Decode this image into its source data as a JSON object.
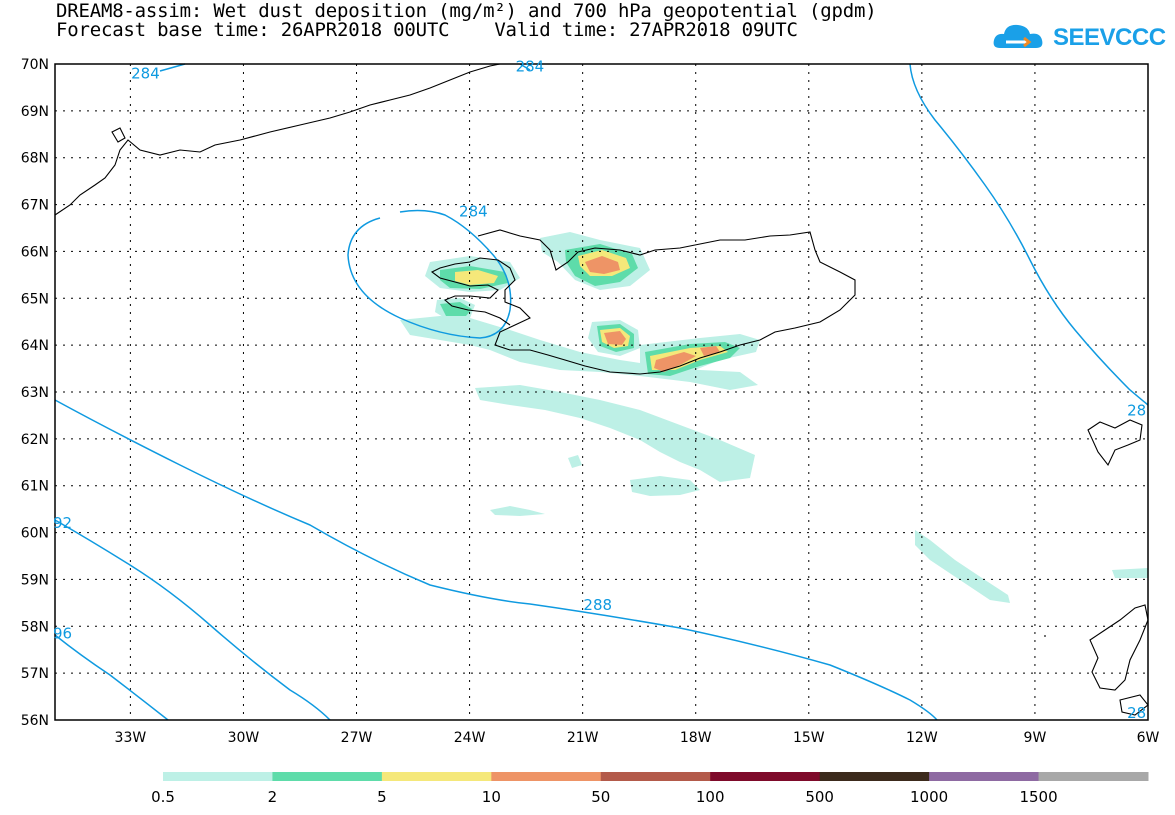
{
  "header": {
    "title_line1": "DREAM8-assim: Wet dust deposition (mg/m²) and 700 hPa geopotential (gpdm)",
    "title_line2": "Forecast base time: 26APR2018 00UTC    Valid time: 27APR2018 09UTC"
  },
  "logo": {
    "text": "SEEVCCC",
    "icon": "cloud-icon",
    "color": "#1aa0e8"
  },
  "axes": {
    "lat_labels": [
      "70N",
      "69N",
      "68N",
      "67N",
      "66N",
      "65N",
      "64N",
      "63N",
      "62N",
      "61N",
      "60N",
      "59N",
      "58N",
      "57N",
      "56N"
    ],
    "lat_values": [
      70,
      69,
      68,
      67,
      66,
      65,
      64,
      63,
      62,
      61,
      60,
      59,
      58,
      57,
      56
    ],
    "lon_labels": [
      "33W",
      "30W",
      "27W",
      "24W",
      "21W",
      "18W",
      "15W",
      "12W",
      "9W",
      "6W"
    ],
    "lon_values": [
      -33,
      -30,
      -27,
      -24,
      -21,
      -18,
      -15,
      -12,
      -9,
      -6
    ],
    "lon_range": [
      -35,
      -6
    ],
    "lat_range": [
      56,
      70
    ],
    "grid": "dotted"
  },
  "contours": {
    "color": "#0f9ae0",
    "labels": [
      {
        "text": "284",
        "lon": -32.6,
        "lat": 69.8
      },
      {
        "text": "284",
        "lon": -22.4,
        "lat": 69.95
      },
      {
        "text": "284",
        "lon": -23.9,
        "lat": 66.85
      },
      {
        "text": "288",
        "lon": -20.6,
        "lat": 58.45
      },
      {
        "text": "92",
        "lon": -34.8,
        "lat": 60.2
      },
      {
        "text": "96",
        "lon": -34.8,
        "lat": 57.85
      },
      {
        "text": "28",
        "lon": -6.3,
        "lat": 62.6
      },
      {
        "text": "28",
        "lon": -6.3,
        "lat": 56.15
      }
    ]
  },
  "legend": {
    "breaks": [
      "0.5",
      "2",
      "5",
      "10",
      "50",
      "100",
      "500",
      "1000",
      "1500"
    ],
    "colors": [
      "#bdf0e6",
      "#5edcaa",
      "#f5e87a",
      "#ee9466",
      "#b35a4a",
      "#7e0a2a",
      "#3c2a1c",
      "#8e6aa2",
      "#a8a8a8"
    ]
  }
}
